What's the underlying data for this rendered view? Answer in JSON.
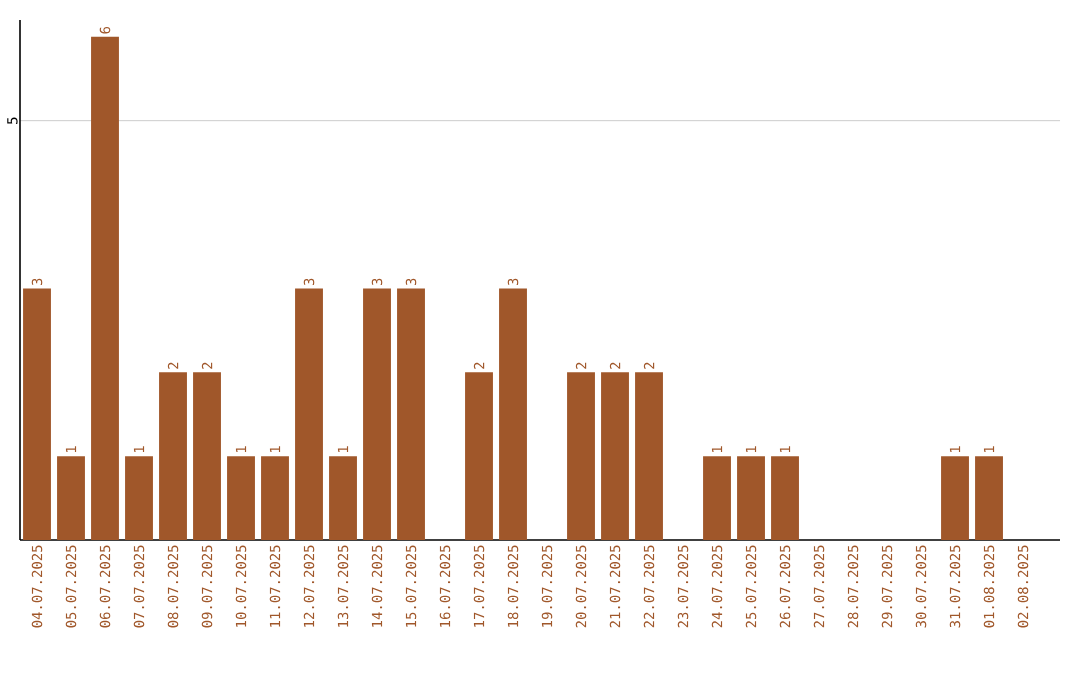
{
  "chart_data": {
    "type": "bar",
    "categories": [
      "04.07.2025",
      "05.07.2025",
      "06.07.2025",
      "07.07.2025",
      "08.07.2025",
      "09.07.2025",
      "10.07.2025",
      "11.07.2025",
      "12.07.2025",
      "13.07.2025",
      "14.07.2025",
      "15.07.2025",
      "16.07.2025",
      "17.07.2025",
      "18.07.2025",
      "19.07.2025",
      "20.07.2025",
      "21.07.2025",
      "22.07.2025",
      "23.07.2025",
      "24.07.2025",
      "25.07.2025",
      "26.07.2025",
      "27.07.2025",
      "28.07.2025",
      "29.07.2025",
      "30.07.2025",
      "31.07.2025",
      "01.08.2025",
      "02.08.2025"
    ],
    "values": [
      3,
      1,
      6,
      1,
      2,
      2,
      1,
      1,
      3,
      1,
      3,
      3,
      0,
      2,
      3,
      0,
      2,
      2,
      2,
      0,
      1,
      1,
      1,
      0,
      0,
      0,
      0,
      1,
      1,
      0
    ],
    "value_labels": [
      "3",
      "1",
      "6",
      "1",
      "2",
      "2",
      "1",
      "1",
      "3",
      "1",
      "3",
      "3",
      null,
      "2",
      "3",
      null,
      "2",
      "2",
      "2",
      null,
      "1",
      "1",
      "1",
      null,
      null,
      null,
      null,
      "1",
      "1",
      null
    ],
    "color": "#a0572a",
    "ylim": [
      0,
      6.2
    ],
    "yticks": [
      5
    ],
    "grid": "y"
  }
}
